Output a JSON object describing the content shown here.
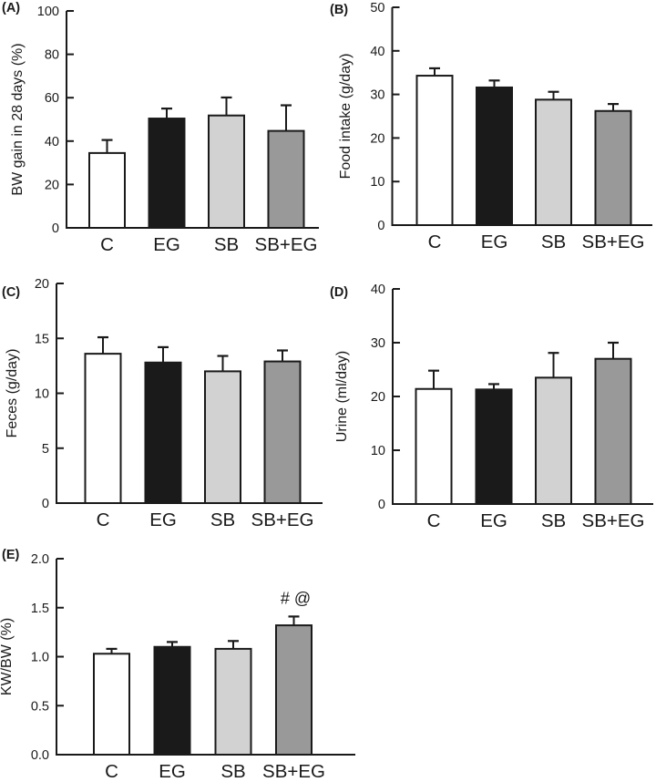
{
  "figure": {
    "background": "#ffffff",
    "stroke_color": "#1a1a1a",
    "text_color": "#1a1a1a",
    "bar_colors": [
      "#ffffff",
      "#1a1a1a",
      "#d2d2d2",
      "#999999"
    ],
    "error_bars": "upper only"
  },
  "chart_data": [
    {
      "type": "bar",
      "panel": "(A)",
      "title": "",
      "xlabel": "",
      "ylabel": "BW gain in 28 days (%)",
      "categories": [
        "C",
        "EG",
        "SB",
        "SB+EG"
      ],
      "values": [
        34.5,
        50.4,
        51.8,
        44.7
      ],
      "errors": [
        6.0,
        4.6,
        8.3,
        11.8
      ],
      "ylim": [
        0,
        100
      ],
      "yticks": [
        0,
        20,
        40,
        60,
        80,
        100
      ],
      "grid": "off",
      "legend": "none",
      "annotation": null
    },
    {
      "type": "bar",
      "panel": "(B)",
      "title": "",
      "xlabel": "",
      "ylabel": "Food intake (g/day)",
      "categories": [
        "C",
        "EG",
        "SB",
        "SB+EG"
      ],
      "values": [
        34.3,
        31.6,
        28.8,
        26.2
      ],
      "errors": [
        1.7,
        1.6,
        1.8,
        1.6
      ],
      "ylim": [
        0,
        50
      ],
      "yticks": [
        0,
        10,
        20,
        30,
        40,
        50
      ],
      "grid": "off",
      "legend": "none",
      "annotation": null
    },
    {
      "type": "bar",
      "panel": "(C)",
      "title": "",
      "xlabel": "",
      "ylabel": "Feces (g/day)",
      "categories": [
        "C",
        "EG",
        "SB",
        "SB+EG"
      ],
      "values": [
        13.6,
        12.8,
        12.0,
        12.9
      ],
      "errors": [
        1.5,
        1.4,
        1.4,
        1.0
      ],
      "ylim": [
        0,
        20
      ],
      "yticks": [
        0,
        5,
        10,
        15,
        20
      ],
      "grid": "off",
      "legend": "none",
      "annotation": null
    },
    {
      "type": "bar",
      "panel": "(D)",
      "title": "",
      "xlabel": "",
      "ylabel": "Urine (ml/day)",
      "categories": [
        "C",
        "EG",
        "SB",
        "SB+EG"
      ],
      "values": [
        21.4,
        21.3,
        23.5,
        27.0
      ],
      "errors": [
        3.4,
        1.0,
        4.6,
        3.0
      ],
      "ylim": [
        0,
        40
      ],
      "yticks": [
        0,
        10,
        20,
        30,
        40
      ],
      "grid": "off",
      "legend": "none",
      "annotation": null
    },
    {
      "type": "bar",
      "panel": "(E)",
      "title": "",
      "xlabel": "",
      "ylabel": "KW/BW (%)",
      "categories": [
        "C",
        "EG",
        "SB",
        "SB+EG"
      ],
      "values": [
        1.03,
        1.1,
        1.08,
        1.32
      ],
      "errors": [
        0.05,
        0.05,
        0.08,
        0.09
      ],
      "ylim": [
        0,
        2.0
      ],
      "yticks": [
        0.0,
        0.5,
        1.0,
        1.5,
        2.0
      ],
      "grid": "off",
      "legend": "none",
      "annotation": {
        "text": "# @",
        "bar_index": 3
      }
    }
  ]
}
